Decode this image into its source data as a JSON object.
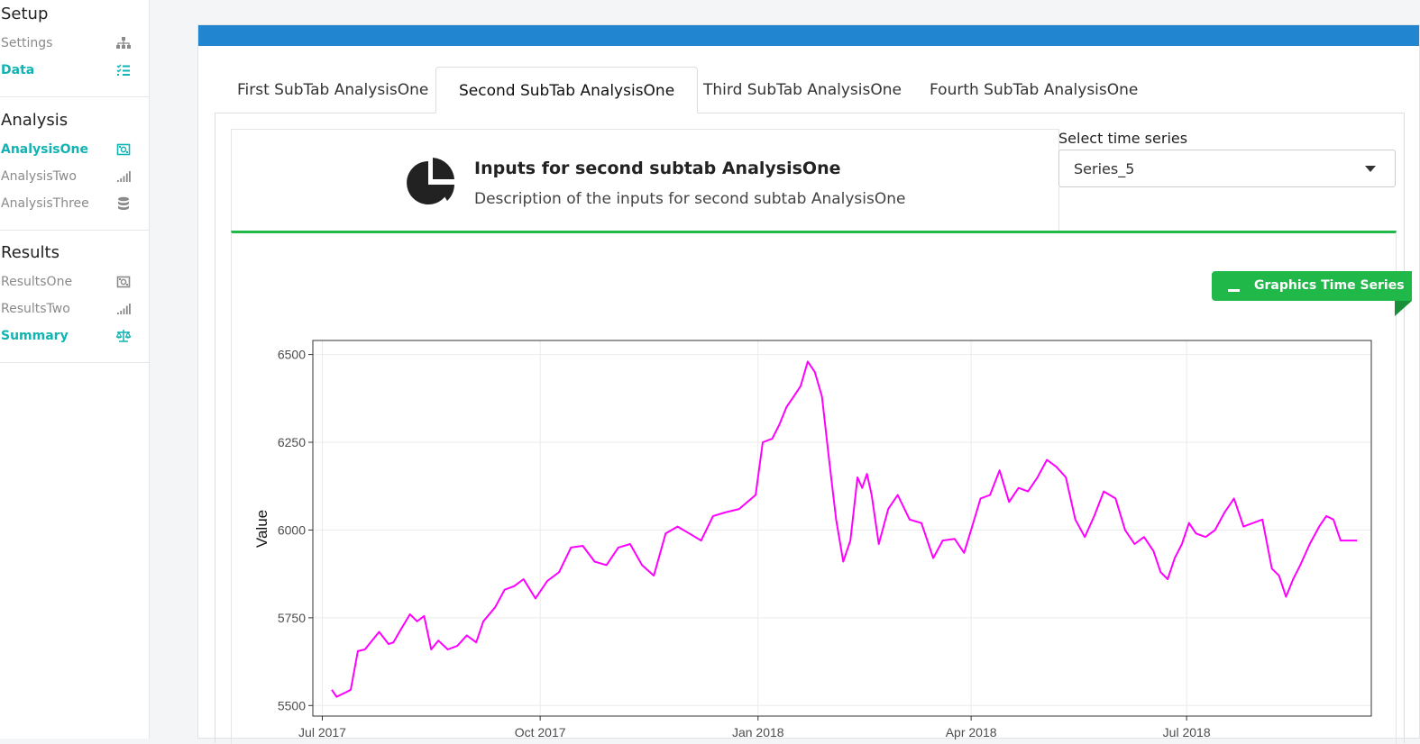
{
  "sidebar": {
    "sections": [
      {
        "title": "Setup",
        "items": [
          {
            "label": "Settings",
            "icon": "sitemap-icon",
            "active": false
          },
          {
            "label": "Data",
            "icon": "list-check-icon",
            "active": true
          }
        ]
      },
      {
        "title": "Analysis",
        "items": [
          {
            "label": "AnalysisOne",
            "icon": "money-bill-icon",
            "active": true
          },
          {
            "label": "AnalysisTwo",
            "icon": "signal-icon",
            "active": false
          },
          {
            "label": "AnalysisThree",
            "icon": "database-icon",
            "active": false
          }
        ]
      },
      {
        "title": "Results",
        "items": [
          {
            "label": "ResultsOne",
            "icon": "money-bill-icon",
            "active": false
          },
          {
            "label": "ResultsTwo",
            "icon": "signal-icon",
            "active": false
          },
          {
            "label": "Summary",
            "icon": "balance-scale-icon",
            "active": true
          }
        ]
      }
    ]
  },
  "tabs": [
    {
      "label": "First SubTab AnalysisOne",
      "active": false
    },
    {
      "label": "Second SubTab AnalysisOne",
      "active": true
    },
    {
      "label": "Third SubTab AnalysisOne",
      "active": false
    },
    {
      "label": "Fourth SubTab AnalysisOne",
      "active": false
    }
  ],
  "inputs_panel": {
    "icon": "pie-chart-icon",
    "title": "Inputs for second subtab AnalysisOne",
    "description": "Description of the inputs for second subtab AnalysisOne"
  },
  "series_select": {
    "label": "Select time series",
    "value": "Series_5"
  },
  "graph_panel": {
    "ribbon_label": "Graphics Time Series",
    "colors": {
      "accent": "#21b84a",
      "topbar": "#2185d0",
      "line": "#ff00ff",
      "active_text": "#12b3b3"
    }
  },
  "chart_data": {
    "type": "line",
    "title": "",
    "xlabel": "",
    "ylabel": "Value",
    "ylim": [
      5470,
      6540
    ],
    "xlim": [
      "2017-06-27",
      "2018-09-17"
    ],
    "yticks": [
      5500,
      5750,
      6000,
      6250,
      6500
    ],
    "xticks": [
      {
        "date": "2017-07-01",
        "label": "Jul 2017"
      },
      {
        "date": "2017-10-01",
        "label": "Oct 2017"
      },
      {
        "date": "2018-01-01",
        "label": "Jan 2018"
      },
      {
        "date": "2018-04-01",
        "label": "Apr 2018"
      },
      {
        "date": "2018-07-01",
        "label": "Jul 2018"
      }
    ],
    "grid": true,
    "series": [
      {
        "color": "#ff00ff",
        "x": [
          "2017-07-05",
          "2017-07-07",
          "2017-07-11",
          "2017-07-13",
          "2017-07-16",
          "2017-07-19",
          "2017-07-25",
          "2017-07-29",
          "2017-07-31",
          "2017-08-03",
          "2017-08-07",
          "2017-08-10",
          "2017-08-13",
          "2017-08-16",
          "2017-08-19",
          "2017-08-23",
          "2017-08-27",
          "2017-08-31",
          "2017-09-04",
          "2017-09-07",
          "2017-09-12",
          "2017-09-16",
          "2017-09-20",
          "2017-09-24",
          "2017-09-29",
          "2017-10-04",
          "2017-10-09",
          "2017-10-14",
          "2017-10-19",
          "2017-10-24",
          "2017-10-29",
          "2017-11-03",
          "2017-11-08",
          "2017-11-13",
          "2017-11-18",
          "2017-11-23",
          "2017-11-28",
          "2017-12-03",
          "2017-12-08",
          "2017-12-13",
          "2017-12-18",
          "2017-12-24",
          "2017-12-31",
          "2018-01-03",
          "2018-01-07",
          "2018-01-10",
          "2018-01-13",
          "2018-01-16",
          "2018-01-19",
          "2018-01-22",
          "2018-01-25",
          "2018-01-28",
          "2018-01-31",
          "2018-02-03",
          "2018-02-06",
          "2018-02-09",
          "2018-02-12",
          "2018-02-14",
          "2018-02-16",
          "2018-02-18",
          "2018-02-21",
          "2018-02-25",
          "2018-03-01",
          "2018-03-06",
          "2018-03-11",
          "2018-03-16",
          "2018-03-20",
          "2018-03-25",
          "2018-03-29",
          "2018-04-01",
          "2018-04-05",
          "2018-04-09",
          "2018-04-13",
          "2018-04-17",
          "2018-04-21",
          "2018-04-25",
          "2018-04-29",
          "2018-05-03",
          "2018-05-07",
          "2018-05-11",
          "2018-05-15",
          "2018-05-19",
          "2018-05-23",
          "2018-05-27",
          "2018-06-01",
          "2018-06-05",
          "2018-06-09",
          "2018-06-13",
          "2018-06-17",
          "2018-06-20",
          "2018-06-23",
          "2018-06-26",
          "2018-06-29",
          "2018-07-02",
          "2018-07-05",
          "2018-07-09",
          "2018-07-13",
          "2018-07-17",
          "2018-07-21",
          "2018-07-25",
          "2018-07-29",
          "2018-08-02",
          "2018-08-06",
          "2018-08-09",
          "2018-08-12",
          "2018-08-15",
          "2018-08-18",
          "2018-08-22",
          "2018-08-26",
          "2018-08-29",
          "2018-09-01",
          "2018-09-04",
          "2018-09-08",
          "2018-09-11"
        ],
        "y": [
          5545,
          5525,
          5538,
          5545,
          5655,
          5660,
          5710,
          5675,
          5680,
          5715,
          5760,
          5740,
          5755,
          5660,
          5685,
          5660,
          5670,
          5700,
          5680,
          5740,
          5780,
          5830,
          5840,
          5860,
          5805,
          5855,
          5880,
          5950,
          5955,
          5910,
          5900,
          5950,
          5960,
          5900,
          5870,
          5990,
          6010,
          5990,
          5970,
          6040,
          6050,
          6060,
          6100,
          6250,
          6260,
          6300,
          6350,
          6380,
          6410,
          6480,
          6450,
          6380,
          6200,
          6030,
          5910,
          5970,
          6150,
          6120,
          6160,
          6100,
          5960,
          6060,
          6100,
          6030,
          6020,
          5920,
          5970,
          5975,
          5935,
          6000,
          6090,
          6100,
          6170,
          6080,
          6120,
          6110,
          6150,
          6200,
          6180,
          6150,
          6030,
          5980,
          6040,
          6110,
          6090,
          6000,
          5960,
          5980,
          5940,
          5880,
          5860,
          5920,
          5960,
          6020,
          5990,
          5980,
          6000,
          6050,
          6090,
          6010,
          6020,
          6030,
          5890,
          5870,
          5810,
          5860,
          5900,
          5960,
          6010,
          6040,
          6030,
          5970,
          5970,
          5970
        ]
      }
    ]
  }
}
